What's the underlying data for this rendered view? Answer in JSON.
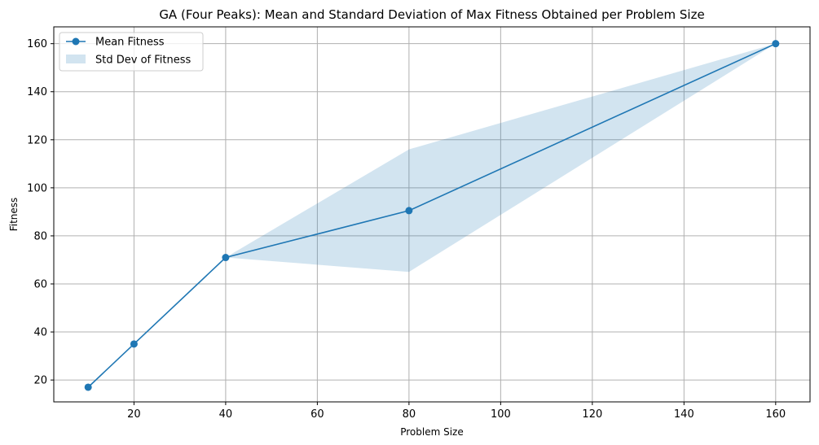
{
  "chart_data": {
    "type": "line",
    "title": "GA (Four Peaks): Mean and Standard Deviation of Max Fitness Obtained  per Problem Size",
    "xlabel": "Problem Size",
    "ylabel": "Fitness",
    "x": [
      10,
      20,
      40,
      80,
      160
    ],
    "series": [
      {
        "name": "Mean Fitness",
        "values": [
          17,
          35,
          71,
          90.5,
          160
        ],
        "color": "#1f77b4",
        "marker": "circle"
      }
    ],
    "band": {
      "name": "Std Dev of Fitness",
      "lower": [
        17,
        35,
        71,
        65,
        160
      ],
      "upper": [
        17,
        35,
        71,
        116,
        160
      ],
      "color": "#1f77b4",
      "alpha": 0.2
    },
    "xlim": [
      2.5,
      167.5
    ],
    "ylim": [
      10.9,
      167
    ],
    "xticks": [
      20,
      40,
      60,
      80,
      100,
      120,
      140,
      160
    ],
    "yticks": [
      20,
      40,
      60,
      80,
      100,
      120,
      140,
      160
    ],
    "grid": true,
    "legend_position": "top-left"
  }
}
